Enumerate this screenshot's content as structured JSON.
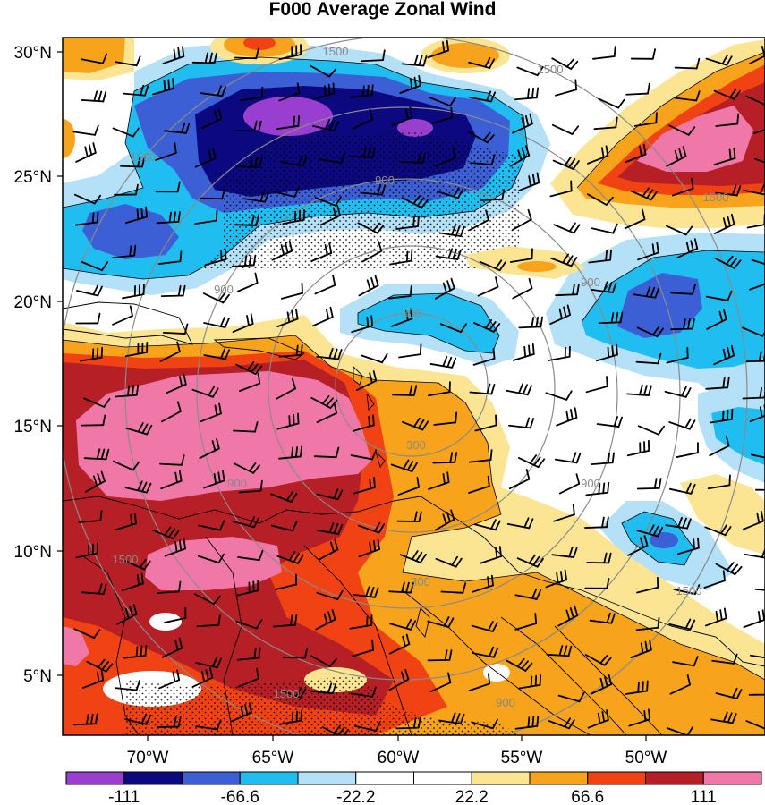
{
  "title": "F000 Average Zonal Wind",
  "map": {
    "lat_labels": [
      "30°N",
      "25°N",
      "20°N",
      "15°N",
      "10°N",
      "5°N"
    ],
    "lon_labels": [
      "70°W",
      "65°W",
      "60°W",
      "55°W",
      "50°W"
    ],
    "contour_labels": [
      "1500",
      "1500",
      "1500",
      "1500",
      "1500",
      "1500",
      "1500",
      "900",
      "900",
      "900",
      "900",
      "900",
      "900",
      "300",
      "300",
      "300"
    ],
    "colors": {
      "purple": "#9a3ed0",
      "navy": "#0c087f",
      "blue": "#3d5fd6",
      "cyan": "#20bdf0",
      "lightblue": "#b4e0f8",
      "white": "#ffffff",
      "lightyellow": "#fbe593",
      "orange": "#f8a31c",
      "redorange": "#f04212",
      "darkred": "#b51f25",
      "pink": "#f078a8"
    }
  },
  "colorbar": {
    "labels": [
      "-111",
      "-66.6",
      "-22.2",
      "22.2",
      "66.6",
      "111"
    ],
    "colors": [
      "#9a3ed0",
      "#0c087f",
      "#3d5fd6",
      "#20bdf0",
      "#b4e0f8",
      "#ffffff",
      "#ffffff",
      "#fbe593",
      "#f8a31c",
      "#f04212",
      "#b51f25",
      "#f078a8"
    ]
  }
}
